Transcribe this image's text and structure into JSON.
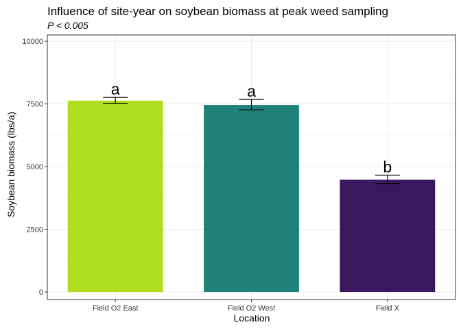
{
  "chart_data": {
    "type": "bar",
    "title": "Influence of site-year on soybean biomass at peak weed sampling",
    "subtitle": "P < 0.005",
    "xlabel": "Location",
    "ylabel": "Soybean biomass (lbs/a)",
    "categories": [
      "Field O2 East",
      "Field O2 West",
      "Field X"
    ],
    "values": [
      7630,
      7460,
      4480
    ],
    "error_low": [
      7520,
      7260,
      4330
    ],
    "error_high": [
      7760,
      7680,
      4660
    ],
    "letters": [
      "a",
      "a",
      "b"
    ],
    "colors": [
      "#b0dd1f",
      "#1f8179",
      "#39185f"
    ],
    "ylim": [
      -300,
      10250
    ],
    "yticks": [
      0,
      2500,
      5000,
      7500,
      10000
    ],
    "ytick_labels": [
      "0",
      "2500",
      "5000",
      "7500",
      "10000"
    ],
    "grid": true,
    "legend": "none"
  }
}
